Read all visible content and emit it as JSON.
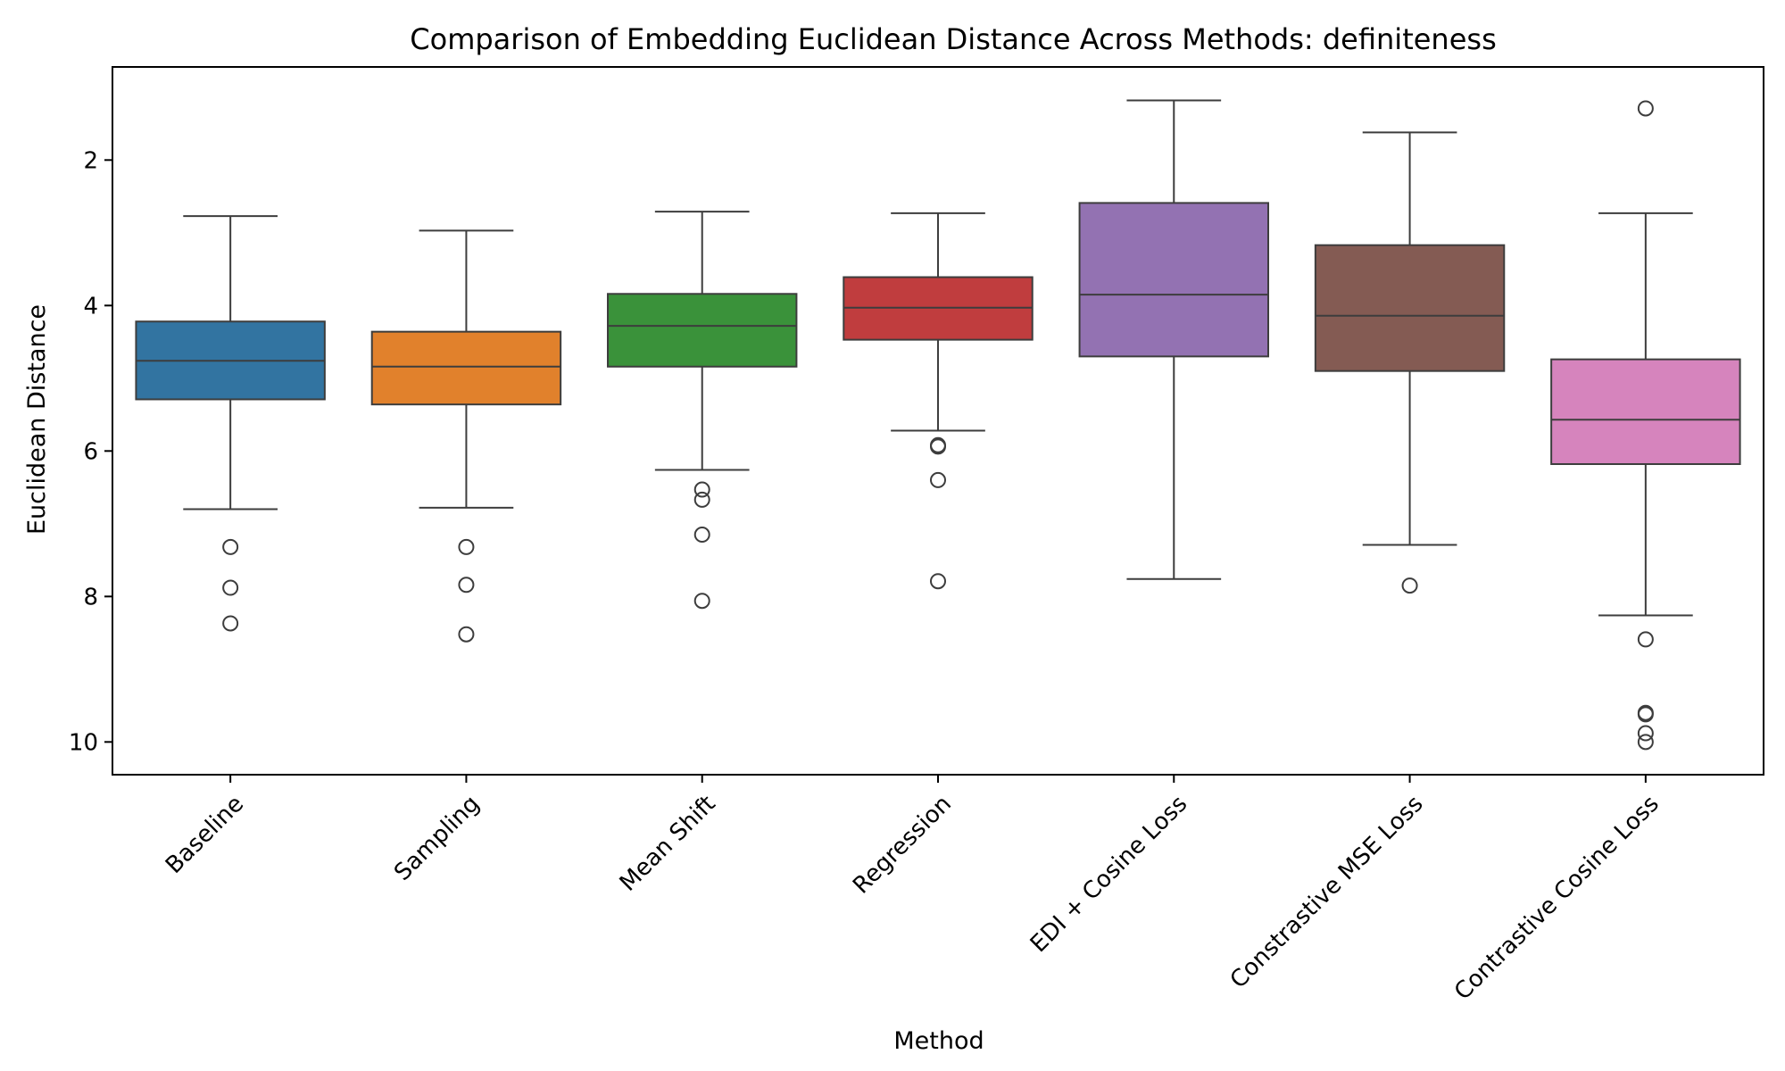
{
  "chart_data": {
    "type": "box",
    "title": "Comparison of Embedding Euclidean Distance Across Methods: definiteness",
    "xlabel": "Method",
    "ylabel": "Euclidean Distance",
    "y_axis_inverted": true,
    "ylim": [
      10.45,
      0.72
    ],
    "yticks": [
      2,
      4,
      6,
      8,
      10
    ],
    "grid": false,
    "legend": "none",
    "categories": [
      "Baseline",
      "Sampling",
      "Mean Shift",
      "Regression",
      "EDI + Cosine Loss",
      "Constrastive MSE Loss",
      "Contrastive Cosine Loss"
    ],
    "boxes": [
      {
        "category": "Baseline",
        "color": "#3274a1",
        "whisker_low": 2.77,
        "q1": 4.22,
        "median": 4.76,
        "q3": 5.29,
        "whisker_high": 6.8,
        "outliers": [
          7.32,
          7.88,
          8.37
        ]
      },
      {
        "category": "Sampling",
        "color": "#e1812c",
        "whisker_low": 2.97,
        "q1": 4.36,
        "median": 4.84,
        "q3": 5.36,
        "whisker_high": 6.78,
        "outliers": [
          7.32,
          7.84,
          8.52
        ]
      },
      {
        "category": "Mean Shift",
        "color": "#3a923a",
        "whisker_low": 2.71,
        "q1": 3.84,
        "median": 4.28,
        "q3": 4.84,
        "whisker_high": 6.26,
        "outliers": [
          6.53,
          6.67,
          7.15,
          8.06
        ]
      },
      {
        "category": "Regression",
        "color": "#c03d3e",
        "whisker_low": 2.73,
        "q1": 3.61,
        "median": 4.03,
        "q3": 4.47,
        "whisker_high": 5.72,
        "outliers": [
          5.92,
          5.94,
          6.4,
          7.79
        ]
      },
      {
        "category": "EDI + Cosine Loss",
        "color": "#9372b2",
        "whisker_low": 1.18,
        "q1": 2.59,
        "median": 3.85,
        "q3": 4.7,
        "whisker_high": 7.76,
        "outliers": []
      },
      {
        "category": "Constrastive MSE Loss",
        "color": "#845b53",
        "whisker_low": 1.62,
        "q1": 3.17,
        "median": 4.14,
        "q3": 4.9,
        "whisker_high": 7.29,
        "outliers": [
          7.85
        ]
      },
      {
        "category": "Contrastive Cosine Loss",
        "color": "#d684bd",
        "whisker_low": 2.73,
        "q1": 4.74,
        "median": 5.57,
        "q3": 6.18,
        "whisker_high": 8.26,
        "outliers": [
          1.29,
          8.59,
          9.6,
          9.62,
          9.88,
          10.0
        ]
      }
    ]
  }
}
